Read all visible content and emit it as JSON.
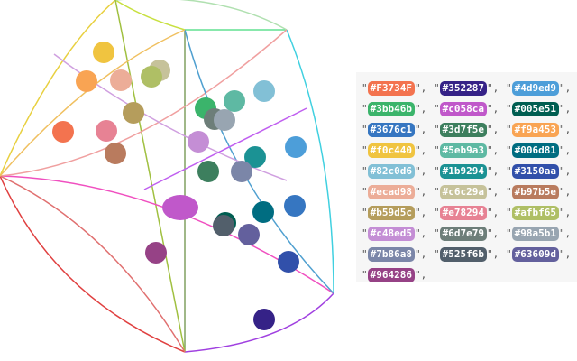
{
  "palette": {
    "open": "\"",
    "close": "\",",
    "colors": [
      "#F3734F",
      "#352287",
      "#4d9ed9",
      "#3bb46b",
      "#c058ca",
      "#005e51",
      "#3676c1",
      "#3d7f5e",
      "#f9a453",
      "#f0c440",
      "#5eb9a3",
      "#006d81",
      "#82c0d6",
      "#1b9294",
      "#3150aa",
      "#ecad98",
      "#c6c29a",
      "#b97b5e",
      "#b59d5c",
      "#e78294",
      "#afbf65",
      "#c48ed5",
      "#6d7e79",
      "#98a5b1",
      "#7b86a8",
      "#525f6b",
      "#63609d",
      "#964286"
    ]
  }
}
